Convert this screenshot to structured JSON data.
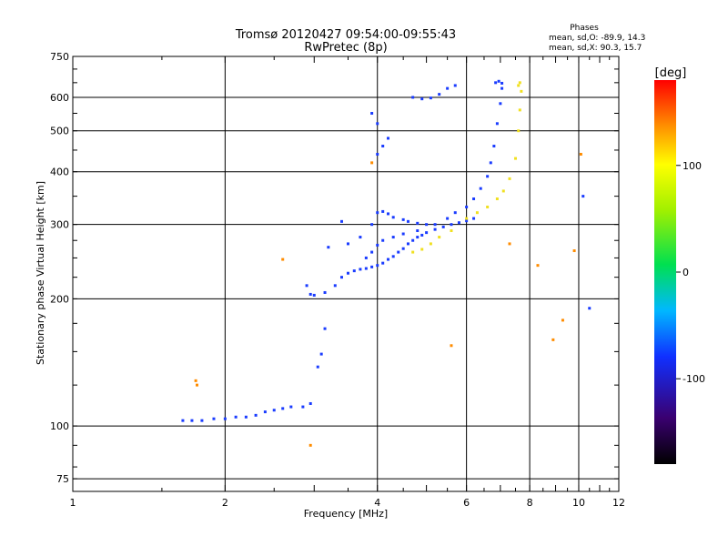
{
  "chart_data": {
    "type": "scatter",
    "title": "Tromsø 20120427 09:54:00-09:55:43",
    "subtitle": "RwPretec (8p)",
    "xlabel": "Frequency [MHz]",
    "ylabel": "Stationary phase Virtual Height [km]",
    "xscale": "log",
    "yscale": "log",
    "xlim": [
      1,
      12
    ],
    "ylim": [
      70,
      750
    ],
    "x_ticks": [
      1,
      2,
      4,
      6,
      8,
      10,
      12
    ],
    "y_ticks": [
      75,
      100,
      200,
      300,
      400,
      500,
      600,
      750
    ],
    "grid": true,
    "phases_stats": {
      "heading": "Phases",
      "line_o": "mean, sd,O:  -89.9, 14.3",
      "line_x": "mean, sd,X:  90.3, 15.7"
    },
    "colorbar": {
      "label": "[deg]",
      "range": [
        -180,
        180
      ],
      "ticks": [
        100,
        0,
        -100
      ],
      "tick_labels": [
        "100",
        "0",
        "-100"
      ],
      "colorscale": "rainbow (black = -180, red = +180)"
    },
    "series": [
      {
        "mode": "O",
        "phase_deg": -90,
        "color": "#1a3cff",
        "points": [
          [
            1.65,
            103
          ],
          [
            1.72,
            103
          ],
          [
            1.8,
            103
          ],
          [
            1.9,
            104
          ],
          [
            2.0,
            104
          ],
          [
            2.1,
            105
          ],
          [
            2.2,
            105
          ],
          [
            2.3,
            106
          ],
          [
            2.4,
            108
          ],
          [
            2.5,
            109
          ],
          [
            2.6,
            110
          ],
          [
            2.7,
            111
          ],
          [
            2.85,
            111
          ],
          [
            2.95,
            113
          ],
          [
            3.05,
            138
          ],
          [
            3.1,
            148
          ],
          [
            3.15,
            170
          ],
          [
            2.9,
            215
          ],
          [
            2.95,
            205
          ],
          [
            3.0,
            204
          ],
          [
            3.15,
            207
          ],
          [
            3.3,
            215
          ],
          [
            3.4,
            225
          ],
          [
            3.5,
            230
          ],
          [
            3.6,
            233
          ],
          [
            3.7,
            235
          ],
          [
            3.8,
            236
          ],
          [
            3.9,
            238
          ],
          [
            4.0,
            240
          ],
          [
            4.1,
            243
          ],
          [
            4.2,
            248
          ],
          [
            4.3,
            252
          ],
          [
            4.4,
            258
          ],
          [
            4.5,
            263
          ],
          [
            4.6,
            270
          ],
          [
            4.7,
            275
          ],
          [
            4.8,
            280
          ],
          [
            4.9,
            283
          ],
          [
            5.0,
            287
          ],
          [
            5.2,
            292
          ],
          [
            5.4,
            296
          ],
          [
            5.6,
            300
          ],
          [
            5.8,
            303
          ],
          [
            6.0,
            306
          ],
          [
            6.2,
            310
          ],
          [
            3.5,
            270
          ],
          [
            3.7,
            280
          ],
          [
            3.9,
            300
          ],
          [
            4.0,
            320
          ],
          [
            4.1,
            322
          ],
          [
            4.2,
            318
          ],
          [
            4.3,
            312
          ],
          [
            4.5,
            308
          ],
          [
            4.6,
            305
          ],
          [
            4.8,
            302
          ],
          [
            5.0,
            300
          ],
          [
            3.8,
            250
          ],
          [
            3.9,
            258
          ],
          [
            4.0,
            268
          ],
          [
            4.1,
            275
          ],
          [
            4.3,
            280
          ],
          [
            4.5,
            285
          ],
          [
            4.8,
            290
          ],
          [
            5.2,
            300
          ],
          [
            5.5,
            310
          ],
          [
            5.7,
            320
          ],
          [
            6.0,
            330
          ],
          [
            6.2,
            345
          ],
          [
            6.4,
            365
          ],
          [
            6.6,
            390
          ],
          [
            6.7,
            420
          ],
          [
            6.8,
            460
          ],
          [
            6.9,
            520
          ],
          [
            7.0,
            580
          ],
          [
            7.05,
            630
          ],
          [
            6.85,
            650
          ],
          [
            6.95,
            655
          ],
          [
            7.05,
            648
          ],
          [
            4.0,
            440
          ],
          [
            4.1,
            460
          ],
          [
            4.2,
            480
          ],
          [
            3.9,
            550
          ],
          [
            4.0,
            520
          ],
          [
            4.7,
            600
          ],
          [
            4.9,
            595
          ],
          [
            5.1,
            598
          ],
          [
            5.3,
            610
          ],
          [
            5.5,
            630
          ],
          [
            5.7,
            640
          ],
          [
            3.4,
            305
          ],
          [
            3.2,
            265
          ],
          [
            10.5,
            190
          ],
          [
            10.2,
            350
          ]
        ]
      },
      {
        "mode": "X",
        "phase_deg": 90,
        "color": "#f0e020",
        "points": [
          [
            4.7,
            258
          ],
          [
            4.9,
            262
          ],
          [
            5.1,
            270
          ],
          [
            5.3,
            280
          ],
          [
            5.6,
            290
          ],
          [
            6.0,
            310
          ],
          [
            6.3,
            320
          ],
          [
            6.6,
            330
          ],
          [
            6.9,
            345
          ],
          [
            7.1,
            360
          ],
          [
            7.3,
            385
          ],
          [
            7.5,
            430
          ],
          [
            7.6,
            500
          ],
          [
            7.65,
            560
          ],
          [
            7.7,
            620
          ],
          [
            7.6,
            640
          ],
          [
            7.65,
            650
          ]
        ]
      },
      {
        "mode": "other",
        "phase_deg": 130,
        "color": "#ff8c00",
        "points": [
          [
            1.75,
            128
          ],
          [
            1.76,
            125
          ],
          [
            2.6,
            248
          ],
          [
            2.95,
            90
          ],
          [
            3.9,
            420
          ],
          [
            5.6,
            155
          ],
          [
            7.3,
            270
          ],
          [
            8.3,
            240
          ],
          [
            8.9,
            160
          ],
          [
            9.3,
            178
          ],
          [
            9.8,
            260
          ],
          [
            10.1,
            440
          ]
        ]
      }
    ]
  }
}
